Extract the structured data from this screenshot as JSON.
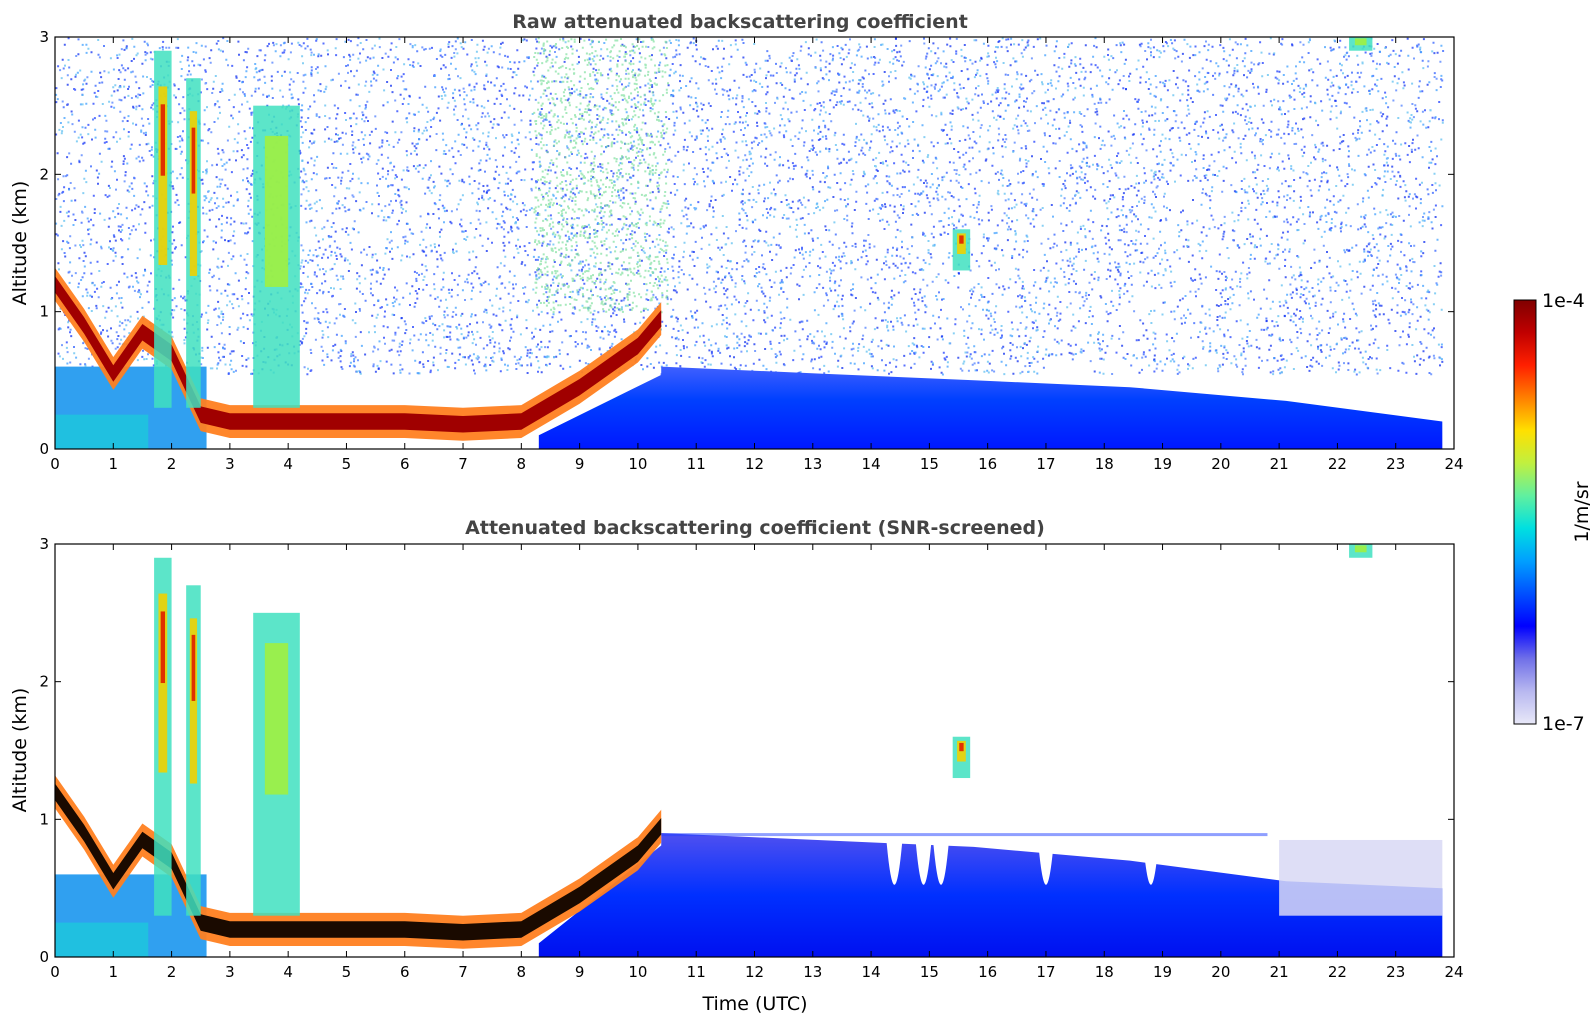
{
  "chart_data": [
    {
      "type": "heatmap",
      "title": "Raw attenuated backscattering coefficient",
      "xlabel": "",
      "ylabel": "Altitude (km)",
      "xlim": [
        0,
        24
      ],
      "ylim": [
        0,
        3
      ],
      "xticks": [
        "0",
        "1",
        "2",
        "3",
        "4",
        "5",
        "6",
        "7",
        "8",
        "9",
        "10",
        "11",
        "12",
        "13",
        "14",
        "15",
        "16",
        "17",
        "18",
        "19",
        "20",
        "21",
        "22",
        "23",
        "24"
      ],
      "yticks": [
        "0",
        "1",
        "2",
        "3"
      ],
      "color_scale": "log",
      "data_end_time": 23.8,
      "features": [
        {
          "kind": "boundary_layer_top",
          "time": [
            0,
            0.5,
            1,
            1.5,
            2,
            2.5,
            3,
            4,
            5,
            6,
            7,
            8,
            9,
            10,
            10.4
          ],
          "altitude_km": [
            1.2,
            0.9,
            0.55,
            0.85,
            0.7,
            0.25,
            0.2,
            0.2,
            0.2,
            0.2,
            0.18,
            0.2,
            0.45,
            0.75,
            0.95
          ]
        },
        {
          "kind": "cloud",
          "time_start": 1.7,
          "time_end": 2.0,
          "altitude_start_km": 0.3,
          "altitude_end_km": 2.9,
          "intensity": "high"
        },
        {
          "kind": "cloud",
          "time_start": 2.25,
          "time_end": 2.5,
          "altitude_start_km": 0.3,
          "altitude_end_km": 2.7,
          "intensity": "high"
        },
        {
          "kind": "cloud",
          "time_start": 3.4,
          "time_end": 4.2,
          "altitude_start_km": 0.3,
          "altitude_end_km": 2.5,
          "intensity": "medium"
        },
        {
          "kind": "cloud",
          "time_start": 15.4,
          "time_end": 15.7,
          "altitude_start_km": 1.3,
          "altitude_end_km": 1.6,
          "intensity": "high"
        },
        {
          "kind": "cloud",
          "time_start": 22.2,
          "time_end": 22.6,
          "altitude_start_km": 2.9,
          "altitude_end_km": 3.0,
          "intensity": "medium"
        },
        {
          "kind": "aerosol_layer",
          "time_start": 10.4,
          "time_end": 23.8,
          "top_km": [
            0.6,
            0.55,
            0.5,
            0.45,
            0.35,
            0.2
          ]
        }
      ]
    },
    {
      "type": "heatmap",
      "title": "Attenuated backscattering coefficient (SNR-screened)",
      "xlabel": "Time (UTC)",
      "ylabel": "Altitude (km)",
      "xlim": [
        0,
        24
      ],
      "ylim": [
        0,
        3
      ],
      "xticks": [
        "0",
        "1",
        "2",
        "3",
        "4",
        "5",
        "6",
        "7",
        "8",
        "9",
        "10",
        "11",
        "12",
        "13",
        "14",
        "15",
        "16",
        "17",
        "18",
        "19",
        "20",
        "21",
        "22",
        "23",
        "24"
      ],
      "yticks": [
        "0",
        "1",
        "2",
        "3"
      ],
      "color_scale": "log",
      "data_end_time": 23.8,
      "features": [
        {
          "kind": "aerosol_layer",
          "time_start": 10.4,
          "time_end": 23.8,
          "top_km": [
            0.9,
            0.85,
            0.8,
            0.7,
            0.55,
            0.5
          ]
        },
        {
          "kind": "screened_gap",
          "time": [
            14.4,
            14.9,
            15.2,
            17.0,
            18.8
          ]
        }
      ]
    }
  ],
  "colorbar": {
    "label": "1/m/sr",
    "max_label": "1e-4",
    "min_label": "1e-7",
    "colors": [
      "#e8e8f8",
      "#b8b8f0",
      "#7070e8",
      "#0000ff",
      "#0050ff",
      "#00a0ff",
      "#00e0e0",
      "#60f0a0",
      "#c0f040",
      "#ffe000",
      "#ff8000",
      "#ff2000",
      "#c00000",
      "#800000"
    ]
  }
}
